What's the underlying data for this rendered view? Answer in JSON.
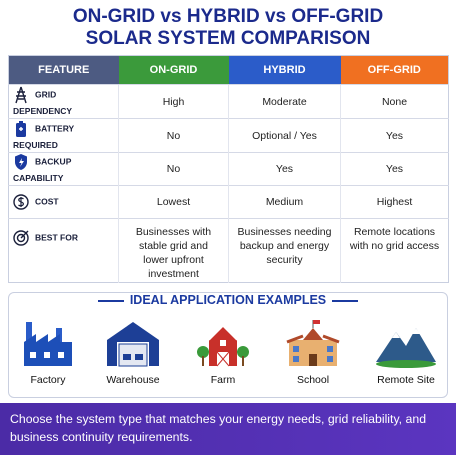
{
  "header": {
    "title_line1": "ON-GRID vs HYBRID vs OFF-GRID",
    "title_line2": "SOLAR SYSTEM COMPARISON"
  },
  "table": {
    "headers": [
      "FEATURE",
      "ON-GRID",
      "HYBRID",
      "OFF-GRID"
    ],
    "rows": [
      [
        "GRID DEPENDENCY",
        "High",
        "Moderate",
        "None"
      ],
      [
        "BATTERY REQUIRED",
        "No",
        "Optional / Yes",
        "Yes"
      ],
      [
        "BACKUP CAPABILITY",
        "No",
        "Yes",
        "Yes"
      ],
      [
        "COST",
        "Lowest",
        "Medium",
        "Highest"
      ],
      [
        "BEST FOR",
        "Businesses with stable grid and lower upfront investment",
        "Businesses needing backup and energy security",
        "Remote locations with no grid access"
      ]
    ]
  },
  "examples": {
    "title": "IDEAL APPLICATION EXAMPLES",
    "items": [
      "Factory",
      "Warehouse",
      "Farm",
      "School",
      "Remote Site"
    ]
  },
  "footer": {
    "text": "Choose the system type that matches your energy needs, grid reliability, and business continuity requirements."
  }
}
